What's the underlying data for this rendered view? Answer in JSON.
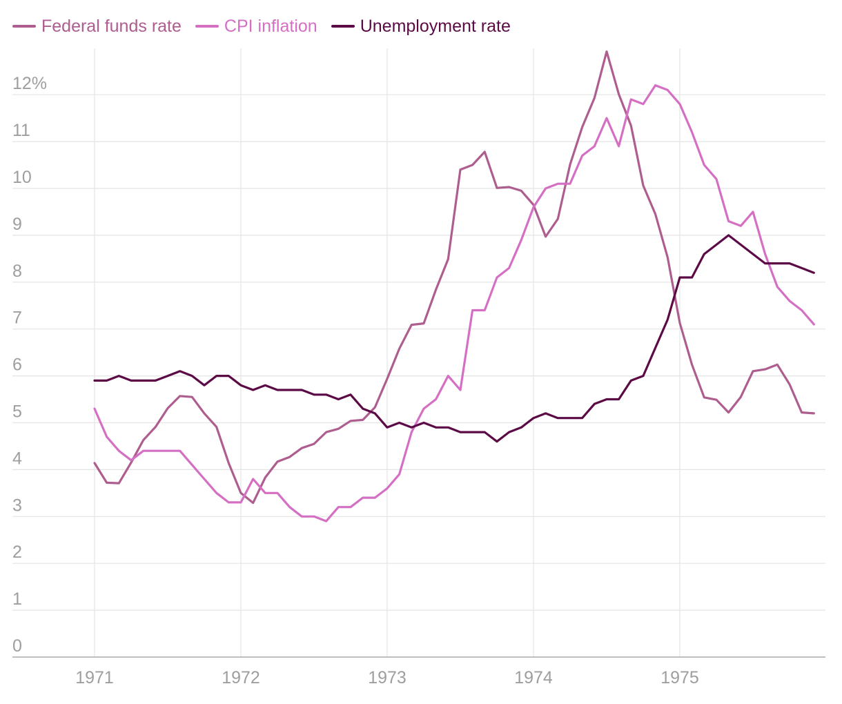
{
  "chart_data": {
    "type": "line",
    "title": "",
    "xlabel": "",
    "ylabel": "",
    "ylim": [
      0,
      12.6
    ],
    "xlim": [
      1971,
      1975.83
    ],
    "grid": true,
    "legend_position": "top-left",
    "y_ticks": [
      {
        "value": 0,
        "label": "0"
      },
      {
        "value": 1,
        "label": "1"
      },
      {
        "value": 2,
        "label": "2"
      },
      {
        "value": 3,
        "label": "3"
      },
      {
        "value": 4,
        "label": "4"
      },
      {
        "value": 5,
        "label": "5"
      },
      {
        "value": 6,
        "label": "6"
      },
      {
        "value": 7,
        "label": "7"
      },
      {
        "value": 8,
        "label": "8"
      },
      {
        "value": 9,
        "label": "9"
      },
      {
        "value": 10,
        "label": "10"
      },
      {
        "value": 11,
        "label": "11"
      },
      {
        "value": 12,
        "label": "12%"
      }
    ],
    "x_ticks": [
      {
        "value": 1971,
        "label": "1971"
      },
      {
        "value": 1972,
        "label": "1972"
      },
      {
        "value": 1973,
        "label": "1973"
      },
      {
        "value": 1974,
        "label": "1974"
      },
      {
        "value": 1975,
        "label": "1975"
      }
    ],
    "x_start": 1971,
    "x_step": 0.08333,
    "series": [
      {
        "name": "Federal funds rate",
        "color": "#ae5d8f",
        "values": [
          4.14,
          3.72,
          3.71,
          4.15,
          4.63,
          4.91,
          5.31,
          5.57,
          5.55,
          5.2,
          4.91,
          4.14,
          3.5,
          3.29,
          3.83,
          4.17,
          4.27,
          4.46,
          4.55,
          4.8,
          4.87,
          5.04,
          5.06,
          5.33,
          5.94,
          6.58,
          7.09,
          7.12,
          7.84,
          8.49,
          10.4,
          10.5,
          10.78,
          10.01,
          10.03,
          9.95,
          9.65,
          8.97,
          9.35,
          10.51,
          11.31,
          11.93,
          12.92,
          12.01,
          11.34,
          10.06,
          9.45,
          8.53,
          7.13,
          6.24,
          5.54,
          5.49,
          5.22,
          5.55,
          6.1,
          6.14,
          6.24,
          5.82,
          5.22,
          5.2
        ]
      },
      {
        "name": "CPI inflation",
        "color": "#d46fc4",
        "values": [
          5.3,
          4.7,
          4.4,
          4.2,
          4.4,
          4.4,
          4.4,
          4.4,
          4.1,
          3.8,
          3.5,
          3.3,
          3.3,
          3.8,
          3.5,
          3.5,
          3.2,
          3.0,
          3.0,
          2.9,
          3.2,
          3.2,
          3.4,
          3.4,
          3.6,
          3.9,
          4.8,
          5.3,
          5.5,
          6.0,
          5.7,
          7.4,
          7.4,
          8.1,
          8.3,
          8.9,
          9.6,
          10.0,
          10.1,
          10.1,
          10.7,
          10.9,
          11.5,
          10.9,
          11.9,
          11.8,
          12.2,
          12.1,
          11.8,
          11.2,
          10.5,
          10.2,
          9.3,
          9.2,
          9.5,
          8.6,
          7.9,
          7.6,
          7.4,
          7.1
        ]
      },
      {
        "name": "Unemployment rate",
        "color": "#5c0a45",
        "values": [
          5.9,
          5.9,
          6.0,
          5.9,
          5.9,
          5.9,
          6.0,
          6.1,
          6.0,
          5.8,
          6.0,
          6.0,
          5.8,
          5.7,
          5.8,
          5.7,
          5.7,
          5.7,
          5.6,
          5.6,
          5.5,
          5.6,
          5.3,
          5.2,
          4.9,
          5.0,
          4.9,
          5.0,
          4.9,
          4.9,
          4.8,
          4.8,
          4.8,
          4.6,
          4.8,
          4.9,
          5.1,
          5.2,
          5.1,
          5.1,
          5.1,
          5.4,
          5.5,
          5.5,
          5.9,
          6.0,
          6.6,
          7.2,
          8.1,
          8.1,
          8.6,
          8.8,
          9.0,
          8.8,
          8.6,
          8.4,
          8.4,
          8.4,
          8.3,
          8.2
        ]
      }
    ]
  }
}
